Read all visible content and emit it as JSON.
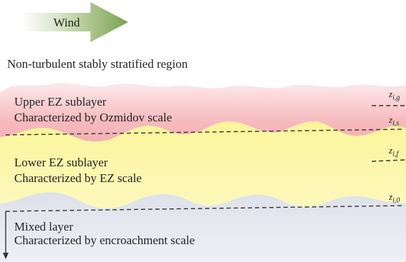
{
  "wind": {
    "label": "Wind"
  },
  "stable_region": {
    "label": "Non-turbulent stably stratified region"
  },
  "upper_sublayer": {
    "title": "Upper EZ sublayer",
    "description": "Characterized by Ozmidov scale"
  },
  "lower_sublayer": {
    "title": "Lower EZ sublayer",
    "description": "Characterized by EZ scale"
  },
  "mixed_layer": {
    "title": "Mixed layer",
    "description": "Characterized by encroachment scale"
  },
  "heights": {
    "z_ig": {
      "symbol": "z",
      "subscript": "i,g"
    },
    "z_is": {
      "symbol": "z",
      "subscript": "i,s"
    },
    "z_if": {
      "symbol": "z",
      "subscript": "i,f"
    },
    "z_i0": {
      "symbol": "z",
      "subscript": "i,0"
    }
  },
  "colors": {
    "wind_arrow": "#7aa24e",
    "upper_sublayer": "#f4a7ad",
    "lower_sublayer": "#fbf7a8",
    "mixed_layer": "#d9dde8",
    "dashed_line": "#333333"
  }
}
